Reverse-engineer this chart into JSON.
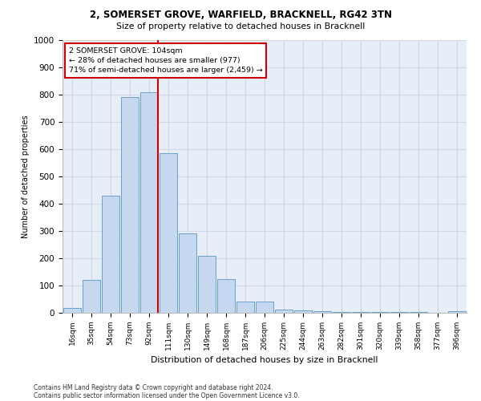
{
  "title_line1": "2, SOMERSET GROVE, WARFIELD, BRACKNELL, RG42 3TN",
  "title_line2": "Size of property relative to detached houses in Bracknell",
  "xlabel": "Distribution of detached houses by size in Bracknell",
  "ylabel": "Number of detached properties",
  "categories": [
    "16sqm",
    "35sqm",
    "54sqm",
    "73sqm",
    "92sqm",
    "111sqm",
    "130sqm",
    "149sqm",
    "168sqm",
    "187sqm",
    "206sqm",
    "225sqm",
    "244sqm",
    "263sqm",
    "282sqm",
    "301sqm",
    "320sqm",
    "339sqm",
    "358sqm",
    "377sqm",
    "396sqm"
  ],
  "values": [
    18,
    120,
    430,
    790,
    810,
    585,
    290,
    210,
    125,
    40,
    40,
    12,
    8,
    5,
    4,
    2,
    2,
    2,
    2,
    0,
    7
  ],
  "bar_color": "#c5d8f0",
  "bar_edge_color": "#6aa0cc",
  "property_label": "2 SOMERSET GROVE: 104sqm",
  "annotation_line2": "← 28% of detached houses are smaller (977)",
  "annotation_line3": "71% of semi-detached houses are larger (2,459) →",
  "vline_color": "#cc0000",
  "vline_x_index": 4.45,
  "annotation_box_color": "#ffffff",
  "annotation_box_edge": "#cc0000",
  "grid_color": "#d0d8e8",
  "background_color": "#e8eef8",
  "ylim": [
    0,
    1000
  ],
  "yticks": [
    0,
    100,
    200,
    300,
    400,
    500,
    600,
    700,
    800,
    900,
    1000
  ],
  "footer_line1": "Contains HM Land Registry data © Crown copyright and database right 2024.",
  "footer_line2": "Contains public sector information licensed under the Open Government Licence v3.0."
}
